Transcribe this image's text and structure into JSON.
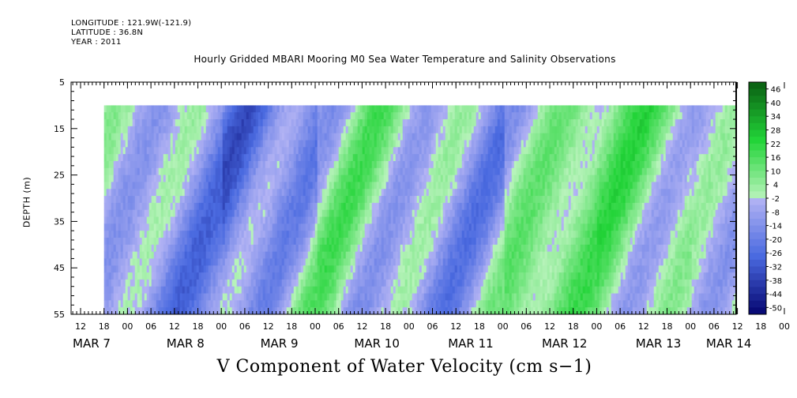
{
  "meta": {
    "longitude": "LONGITUDE : 121.9W(-121.9)",
    "latitude": "LATITUDE : 36.8N",
    "year": "YEAR : 2011"
  },
  "colors": {
    "positive_max": "#0a5e12",
    "positive_mid": "#22d438",
    "positive_min": "#b8f3bb",
    "negative_min": "#b4b4f4",
    "negative_mid": "#4a6ae0",
    "negative_max": "#050570"
  },
  "chart_data": {
    "type": "heatmap",
    "title": "Hourly Gridded MBARI Mooring M0 Sea Water Temperature and Salinity Observations",
    "xlabel": "V Component of Water Velocity (cm s−1)",
    "ylabel": "DEPTH (m)",
    "y_axis": {
      "inverted": true,
      "range": [
        5,
        55
      ],
      "ticks": [
        5,
        15,
        25,
        35,
        45,
        55
      ]
    },
    "x_axis": {
      "hour_ticks": [
        "12",
        "18",
        "00",
        "06",
        "12",
        "18",
        "00",
        "06",
        "12",
        "18",
        "00",
        "06",
        "12",
        "18",
        "00",
        "06",
        "12",
        "18",
        "00",
        "06",
        "12",
        "18",
        "00",
        "06",
        "12",
        "18",
        "00",
        "06",
        "12",
        "18",
        "00",
        "06"
      ],
      "day_labels": [
        {
          "label": "MAR  7",
          "position": 0
        },
        {
          "label": "MAR  8",
          "position": 4
        },
        {
          "label": "MAR  9",
          "position": 8
        },
        {
          "label": "MAR 10",
          "position": 12
        },
        {
          "label": "MAR 11",
          "position": 16
        },
        {
          "label": "MAR 12",
          "position": 20
        },
        {
          "label": "MAR 13",
          "position": 24
        },
        {
          "label": "MAR 14",
          "position": 27
        }
      ],
      "data_start_hour": "MAR 7 18:00",
      "data_end_hour": "MAR 14 ~11:00"
    },
    "data_depth_range": [
      10,
      55
    ],
    "colorbar": {
      "levels": [
        "46",
        "40",
        "34",
        "28",
        "22",
        "16",
        "10",
        "4",
        "-2",
        "-8",
        "-14",
        "-20",
        "-26",
        "-32",
        "-38",
        "-44",
        "-50"
      ],
      "range": [
        -50,
        50
      ]
    },
    "series_description": [
      {
        "day": "MAR 7",
        "dominant": "negative",
        "range": [
          -24,
          8
        ]
      },
      {
        "day": "MAR 8",
        "dominant": "negative",
        "range": [
          -30,
          12
        ]
      },
      {
        "day": "MAR 9",
        "dominant": "mixed",
        "range": [
          -20,
          16
        ]
      },
      {
        "day": "MAR 10",
        "dominant": "mixed",
        "range": [
          -20,
          16
        ]
      },
      {
        "day": "MAR 11",
        "dominant": "positive",
        "range": [
          -10,
          20
        ]
      },
      {
        "day": "MAR 12",
        "dominant": "positive",
        "range": [
          -10,
          22
        ]
      },
      {
        "day": "MAR 13",
        "dominant": "positive",
        "range": [
          -12,
          18
        ]
      },
      {
        "day": "MAR 14",
        "dominant": "mixed",
        "range": [
          -10,
          14
        ]
      }
    ]
  }
}
